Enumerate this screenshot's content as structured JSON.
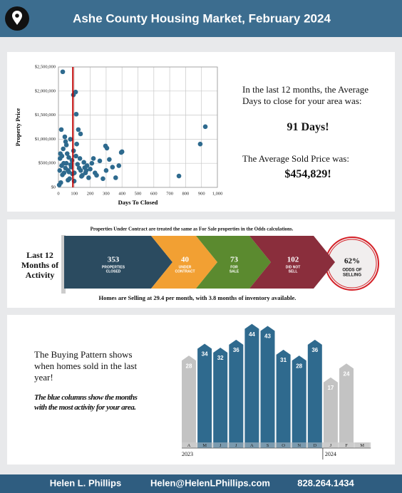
{
  "header": {
    "title": "Ashe County Housing Market, February 2024"
  },
  "chart_data": [
    {
      "type": "scatter",
      "xlabel": "Days To Closed",
      "ylabel": "Property Price",
      "color": "#2e6a8e",
      "grid": true,
      "xlim": [
        0,
        1000
      ],
      "ylim": [
        0,
        2500000
      ],
      "xticks": [
        0,
        100,
        200,
        300,
        400,
        500,
        600,
        700,
        800,
        900,
        {
          "value": 1000,
          "label": "1,000"
        }
      ],
      "yticks": [
        {
          "value": 0,
          "label": "$0"
        },
        {
          "value": 500000,
          "label": "$500,000"
        },
        {
          "value": 1000000,
          "label": "$1,000,000"
        },
        {
          "value": 1500000,
          "label": "$1,500,000"
        },
        {
          "value": 2000000,
          "label": "$2,000,000"
        },
        {
          "value": 2500000,
          "label": "$2,500,000"
        }
      ],
      "reference_x": 91,
      "reference_color": "#c00000",
      "x": [
        27,
        94,
        108,
        112,
        924,
        892,
        758,
        395,
        400,
        296,
        305,
        18,
        139,
        10,
        20,
        30,
        35,
        45,
        50,
        55,
        60,
        65,
        70,
        75,
        80,
        85,
        95,
        100,
        110,
        120,
        130,
        140,
        150,
        160,
        170,
        180,
        190,
        200,
        220,
        240,
        260,
        280,
        300,
        320,
        340,
        360,
        380,
        40,
        50,
        60,
        15,
        25,
        5,
        8,
        12,
        22,
        33,
        44,
        66,
        77,
        88,
        99,
        115,
        125,
        135,
        145,
        165,
        175,
        210,
        230
      ],
      "y": [
        2400000,
        1920000,
        1980000,
        1520000,
        1260000,
        900000,
        236000,
        725000,
        740000,
        860000,
        815000,
        1200000,
        1110000,
        600000,
        450000,
        800000,
        300000,
        950000,
        500000,
        700000,
        350000,
        620000,
        180000,
        1000000,
        420000,
        560000,
        760000,
        300000,
        650000,
        480000,
        400000,
        350000,
        250000,
        520000,
        300000,
        450000,
        200000,
        380000,
        600000,
        250000,
        550000,
        180000,
        350000,
        580000,
        420000,
        200000,
        450000,
        1050000,
        880000,
        150000,
        100000,
        260000,
        50000,
        350000,
        700000,
        650000,
        500000,
        400000,
        320000,
        470000,
        280000,
        130000,
        900000,
        1200000,
        600000,
        230000,
        410000,
        350000,
        500000,
        300000
      ]
    },
    {
      "type": "bar",
      "categories": [
        "A",
        "M",
        "J",
        "J",
        "A",
        "S",
        "O",
        "N",
        "D",
        "J",
        "F",
        "M"
      ],
      "values": [
        28,
        34,
        32,
        36,
        44,
        43,
        31,
        28,
        36,
        17,
        24,
        null
      ],
      "colors": [
        "#c3c3c3",
        "#2f6a8e",
        "#2f6a8e",
        "#2f6a8e",
        "#2f6a8e",
        "#2f6a8e",
        "#2f6a8e",
        "#2f6a8e",
        "#2f6a8e",
        "#c3c3c3",
        "#c3c3c3",
        "#c3c3c3"
      ],
      "year_labels": [
        "2023",
        "2024"
      ]
    }
  ],
  "stats": {
    "days_text": "In the last 12 months, the Average Days to close for your area was:",
    "days_value": "91 Days!",
    "price_text": "The Average Sold Price was:",
    "price_value": "$454,829!"
  },
  "activity": {
    "label": "Last 12 Months of Activity",
    "note": "Properties Under Contract are treated the same as For Sale properties in the Odds calculations.",
    "segments": [
      {
        "value": "353",
        "label": [
          "PROPERTIES",
          "CLOSED"
        ],
        "color": "#2b4b60"
      },
      {
        "value": "40",
        "label": [
          "UNDER",
          "CONTRACT"
        ],
        "color": "#f2a033"
      },
      {
        "value": "73",
        "label": [
          "FOR",
          "SALE"
        ],
        "color": "#5b8a2f"
      },
      {
        "value": "102",
        "label": [
          "DID NOT",
          "SELL"
        ],
        "color": "#8a2e3c"
      }
    ],
    "odds": {
      "value": "62%",
      "label": [
        "ODDS OF",
        "SELLING"
      ]
    },
    "summary": "Homes are Selling at 29.4 per month, with 3.8 months of inventory available."
  },
  "pattern": {
    "text": "The Buying Pattern shows when homes sold in the last year!",
    "note": "The blue columns show the months with the most activity for your area."
  },
  "footer": {
    "name": "Helen L. Phillips",
    "email": "Helen@HelenLPhillips.com",
    "phone": "828.264.1434"
  }
}
